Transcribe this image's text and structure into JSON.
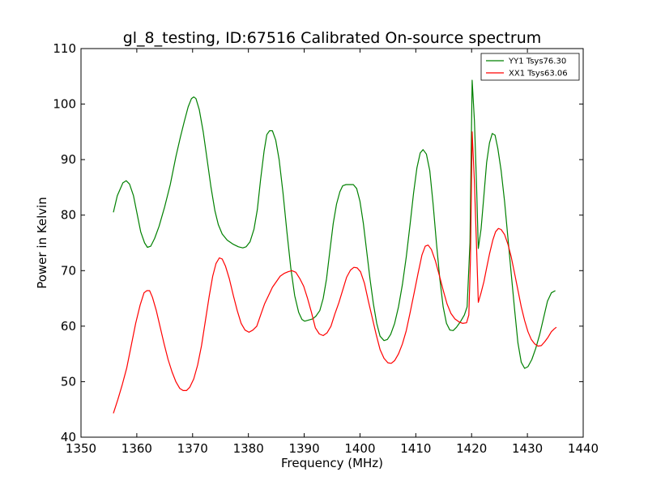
{
  "chart_data": {
    "type": "line",
    "title": "gl_8_testing, ID:67516 Calibrated On-source spectrum",
    "xlabel": "Frequency (MHz)",
    "ylabel": "Power in Kelvin",
    "xlim": [
      1350,
      1440
    ],
    "ylim": [
      40,
      110
    ],
    "xticks": [
      1350,
      1360,
      1370,
      1380,
      1390,
      1400,
      1410,
      1420,
      1430,
      1440
    ],
    "yticks": [
      40,
      50,
      60,
      70,
      80,
      90,
      100,
      110
    ],
    "grid": false,
    "legend_position": "top-right",
    "series": [
      {
        "name": "YY1 Tsys76.30",
        "color": "#008000",
        "points": [
          [
            1355.8,
            80.5
          ],
          [
            1356.5,
            83.5
          ],
          [
            1357.5,
            85.8
          ],
          [
            1358.1,
            86.2
          ],
          [
            1358.7,
            85.6
          ],
          [
            1359.4,
            83.5
          ],
          [
            1360.0,
            80.5
          ],
          [
            1360.7,
            77.0
          ],
          [
            1361.4,
            75.0
          ],
          [
            1361.9,
            74.2
          ],
          [
            1362.5,
            74.4
          ],
          [
            1363.2,
            75.8
          ],
          [
            1364.0,
            78.0
          ],
          [
            1365.0,
            81.5
          ],
          [
            1366.0,
            85.5
          ],
          [
            1367.0,
            90.5
          ],
          [
            1367.8,
            94.0
          ],
          [
            1368.5,
            96.8
          ],
          [
            1369.2,
            99.5
          ],
          [
            1369.8,
            101.0
          ],
          [
            1370.2,
            101.3
          ],
          [
            1370.6,
            101.0
          ],
          [
            1371.2,
            99.0
          ],
          [
            1371.9,
            95.0
          ],
          [
            1372.6,
            90.0
          ],
          [
            1373.3,
            85.0
          ],
          [
            1374.0,
            80.8
          ],
          [
            1374.6,
            78.3
          ],
          [
            1375.3,
            76.6
          ],
          [
            1376.2,
            75.5
          ],
          [
            1377.2,
            74.8
          ],
          [
            1378.2,
            74.3
          ],
          [
            1379.0,
            74.1
          ],
          [
            1379.6,
            74.3
          ],
          [
            1380.3,
            75.2
          ],
          [
            1381.0,
            77.5
          ],
          [
            1381.6,
            81.0
          ],
          [
            1382.2,
            86.5
          ],
          [
            1382.8,
            91.5
          ],
          [
            1383.3,
            94.5
          ],
          [
            1383.8,
            95.2
          ],
          [
            1384.3,
            95.2
          ],
          [
            1384.9,
            93.5
          ],
          [
            1385.5,
            90.0
          ],
          [
            1386.2,
            84.0
          ],
          [
            1386.9,
            77.0
          ],
          [
            1387.6,
            70.5
          ],
          [
            1388.3,
            65.5
          ],
          [
            1389.0,
            62.5
          ],
          [
            1389.6,
            61.2
          ],
          [
            1390.1,
            60.9
          ],
          [
            1390.8,
            61.1
          ],
          [
            1391.5,
            61.3
          ],
          [
            1392.1,
            61.8
          ],
          [
            1392.8,
            62.8
          ],
          [
            1393.4,
            65.0
          ],
          [
            1394.0,
            68.5
          ],
          [
            1394.6,
            73.5
          ],
          [
            1395.2,
            78.5
          ],
          [
            1395.8,
            82.0
          ],
          [
            1396.4,
            84.2
          ],
          [
            1396.9,
            85.3
          ],
          [
            1397.5,
            85.5
          ],
          [
            1398.2,
            85.5
          ],
          [
            1398.8,
            85.5
          ],
          [
            1399.4,
            84.8
          ],
          [
            1400.0,
            82.5
          ],
          [
            1400.6,
            78.5
          ],
          [
            1401.2,
            73.5
          ],
          [
            1401.8,
            68.5
          ],
          [
            1402.4,
            64.0
          ],
          [
            1403.0,
            60.5
          ],
          [
            1403.6,
            58.2
          ],
          [
            1404.3,
            57.4
          ],
          [
            1404.9,
            57.6
          ],
          [
            1405.5,
            58.5
          ],
          [
            1406.2,
            60.5
          ],
          [
            1406.9,
            63.5
          ],
          [
            1407.6,
            67.5
          ],
          [
            1408.3,
            72.5
          ],
          [
            1409.0,
            78.5
          ],
          [
            1409.6,
            84.0
          ],
          [
            1410.2,
            88.5
          ],
          [
            1410.8,
            91.2
          ],
          [
            1411.3,
            91.8
          ],
          [
            1411.9,
            91.0
          ],
          [
            1412.5,
            88.0
          ],
          [
            1413.1,
            82.0
          ],
          [
            1413.7,
            75.0
          ],
          [
            1414.3,
            68.5
          ],
          [
            1414.9,
            63.5
          ],
          [
            1415.5,
            60.5
          ],
          [
            1416.1,
            59.3
          ],
          [
            1416.7,
            59.2
          ],
          [
            1417.3,
            59.8
          ],
          [
            1418.0,
            60.8
          ],
          [
            1418.7,
            62.0
          ],
          [
            1419.2,
            63.5
          ],
          [
            1419.7,
            75.0
          ],
          [
            1420.1,
            104.3
          ],
          [
            1420.5,
            97.0
          ],
          [
            1420.9,
            85.0
          ],
          [
            1421.2,
            74.0
          ],
          [
            1421.7,
            77.5
          ],
          [
            1422.2,
            83.5
          ],
          [
            1422.7,
            89.5
          ],
          [
            1423.2,
            93.0
          ],
          [
            1423.7,
            94.7
          ],
          [
            1424.2,
            94.4
          ],
          [
            1424.7,
            92.0
          ],
          [
            1425.3,
            88.0
          ],
          [
            1425.9,
            82.5
          ],
          [
            1426.5,
            76.0
          ],
          [
            1427.1,
            69.5
          ],
          [
            1427.7,
            63.0
          ],
          [
            1428.3,
            57.0
          ],
          [
            1428.9,
            53.5
          ],
          [
            1429.5,
            52.4
          ],
          [
            1430.1,
            52.7
          ],
          [
            1430.8,
            54.0
          ],
          [
            1431.5,
            56.0
          ],
          [
            1432.2,
            58.5
          ],
          [
            1432.9,
            61.5
          ],
          [
            1433.6,
            64.5
          ],
          [
            1434.3,
            66.0
          ],
          [
            1435.0,
            66.4
          ]
        ]
      },
      {
        "name": "XX1 Tsys63.06",
        "color": "#ff0000",
        "points": [
          [
            1355.8,
            44.3
          ],
          [
            1356.6,
            46.8
          ],
          [
            1357.4,
            49.5
          ],
          [
            1358.2,
            52.5
          ],
          [
            1359.0,
            56.5
          ],
          [
            1359.8,
            60.5
          ],
          [
            1360.6,
            63.8
          ],
          [
            1361.3,
            66.0
          ],
          [
            1361.8,
            66.4
          ],
          [
            1362.3,
            66.4
          ],
          [
            1362.8,
            65.2
          ],
          [
            1363.5,
            62.8
          ],
          [
            1364.2,
            59.8
          ],
          [
            1364.9,
            56.8
          ],
          [
            1365.6,
            54.0
          ],
          [
            1366.3,
            51.8
          ],
          [
            1367.0,
            50.0
          ],
          [
            1367.7,
            48.8
          ],
          [
            1368.3,
            48.4
          ],
          [
            1368.9,
            48.4
          ],
          [
            1369.5,
            49.0
          ],
          [
            1370.2,
            50.5
          ],
          [
            1370.9,
            53.0
          ],
          [
            1371.6,
            56.5
          ],
          [
            1372.3,
            61.0
          ],
          [
            1373.0,
            65.5
          ],
          [
            1373.6,
            69.0
          ],
          [
            1374.2,
            71.3
          ],
          [
            1374.8,
            72.3
          ],
          [
            1375.3,
            72.1
          ],
          [
            1375.9,
            70.8
          ],
          [
            1376.6,
            68.5
          ],
          [
            1377.3,
            65.5
          ],
          [
            1378.0,
            62.8
          ],
          [
            1378.7,
            60.5
          ],
          [
            1379.4,
            59.3
          ],
          [
            1380.1,
            58.9
          ],
          [
            1380.8,
            59.3
          ],
          [
            1381.5,
            60.0
          ],
          [
            1382.2,
            62.0
          ],
          [
            1382.9,
            64.0
          ],
          [
            1383.6,
            65.5
          ],
          [
            1384.3,
            67.0
          ],
          [
            1385.0,
            68.0
          ],
          [
            1385.7,
            69.0
          ],
          [
            1386.4,
            69.5
          ],
          [
            1387.1,
            69.8
          ],
          [
            1387.8,
            70.0
          ],
          [
            1388.5,
            69.7
          ],
          [
            1389.2,
            68.6
          ],
          [
            1389.9,
            67.2
          ],
          [
            1390.6,
            65.0
          ],
          [
            1391.3,
            62.5
          ],
          [
            1392.0,
            59.7
          ],
          [
            1392.7,
            58.6
          ],
          [
            1393.4,
            58.3
          ],
          [
            1394.1,
            58.8
          ],
          [
            1394.8,
            60.0
          ],
          [
            1395.5,
            62.2
          ],
          [
            1396.2,
            64.2
          ],
          [
            1396.9,
            66.5
          ],
          [
            1397.6,
            68.8
          ],
          [
            1398.3,
            70.1
          ],
          [
            1398.9,
            70.6
          ],
          [
            1399.5,
            70.5
          ],
          [
            1400.1,
            69.8
          ],
          [
            1400.8,
            67.7
          ],
          [
            1401.5,
            64.5
          ],
          [
            1402.2,
            61.5
          ],
          [
            1402.9,
            58.5
          ],
          [
            1403.6,
            55.8
          ],
          [
            1404.3,
            54.2
          ],
          [
            1405.0,
            53.4
          ],
          [
            1405.6,
            53.3
          ],
          [
            1406.2,
            53.8
          ],
          [
            1406.9,
            55.0
          ],
          [
            1407.6,
            56.8
          ],
          [
            1408.3,
            59.2
          ],
          [
            1409.0,
            62.5
          ],
          [
            1409.7,
            66.0
          ],
          [
            1410.4,
            69.5
          ],
          [
            1411.1,
            72.8
          ],
          [
            1411.7,
            74.4
          ],
          [
            1412.2,
            74.6
          ],
          [
            1412.8,
            73.8
          ],
          [
            1413.5,
            71.8
          ],
          [
            1414.2,
            69.2
          ],
          [
            1414.9,
            66.5
          ],
          [
            1415.6,
            64.0
          ],
          [
            1416.3,
            62.3
          ],
          [
            1417.0,
            61.3
          ],
          [
            1417.7,
            60.8
          ],
          [
            1418.4,
            60.5
          ],
          [
            1419.1,
            60.6
          ],
          [
            1419.5,
            62.0
          ],
          [
            1419.8,
            72.0
          ],
          [
            1420.1,
            95.0
          ],
          [
            1420.5,
            86.0
          ],
          [
            1420.9,
            74.0
          ],
          [
            1421.2,
            64.3
          ],
          [
            1421.7,
            66.0
          ],
          [
            1422.2,
            68.0
          ],
          [
            1422.7,
            70.5
          ],
          [
            1423.2,
            73.0
          ],
          [
            1423.8,
            75.5
          ],
          [
            1424.3,
            77.0
          ],
          [
            1424.8,
            77.6
          ],
          [
            1425.3,
            77.4
          ],
          [
            1425.9,
            76.5
          ],
          [
            1426.5,
            74.8
          ],
          [
            1427.1,
            72.5
          ],
          [
            1427.7,
            69.5
          ],
          [
            1428.3,
            66.5
          ],
          [
            1428.9,
            63.5
          ],
          [
            1429.5,
            61.0
          ],
          [
            1430.1,
            59.0
          ],
          [
            1430.7,
            57.6
          ],
          [
            1431.3,
            56.8
          ],
          [
            1431.9,
            56.4
          ],
          [
            1432.5,
            56.5
          ],
          [
            1433.1,
            57.2
          ],
          [
            1433.7,
            58.0
          ],
          [
            1434.3,
            59.0
          ],
          [
            1434.8,
            59.5
          ],
          [
            1435.2,
            59.8
          ]
        ]
      }
    ]
  }
}
